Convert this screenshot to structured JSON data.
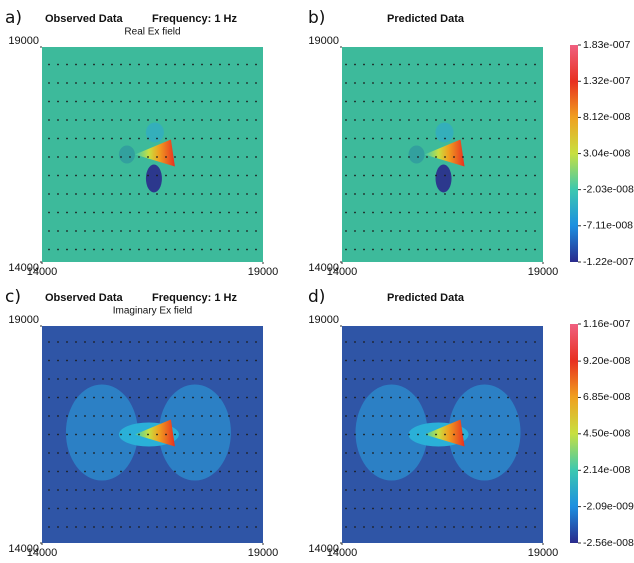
{
  "chart_data": [
    {
      "type": "heatmap",
      "panel_label": "a)",
      "title": "Observed Data",
      "subtitle": "Frequency: 1 Hz",
      "note": "Real Ex field",
      "field_color": "#3dba9b",
      "xlim": [
        14000,
        19000
      ],
      "ylim": [
        14000,
        19000
      ],
      "xticks": [
        14000,
        19000
      ],
      "yticks": [
        14000,
        19000
      ]
    },
    {
      "type": "heatmap",
      "panel_label": "b)",
      "title": "Predicted Data",
      "field_color": "#3dba9b",
      "xlim": [
        14000,
        19000
      ],
      "ylim": [
        14000,
        19000
      ],
      "xticks": [
        14000,
        19000
      ],
      "yticks": [
        14000,
        19000
      ],
      "colormap": [
        "#2a2a8c",
        "#1c8fe0",
        "#3cc8b0",
        "#c8e040",
        "#f0a020",
        "#e83020",
        "#f06080"
      ],
      "zlim": [
        -1.22e-07,
        1.83e-07
      ],
      "zticks": [
        {
          "value": 1.83e-07,
          "label": "1.83e-007"
        },
        {
          "value": 1.32e-07,
          "label": "1.32e-007"
        },
        {
          "value": 8.12e-08,
          "label": "8.12e-008"
        },
        {
          "value": 3.04e-08,
          "label": "3.04e-008"
        },
        {
          "value": -2.03e-08,
          "label": "-2.03e-008"
        },
        {
          "value": -7.11e-08,
          "label": "-7.11e-008"
        },
        {
          "value": -1.22e-07,
          "label": "-1.22e-007"
        }
      ]
    },
    {
      "type": "heatmap",
      "panel_label": "c)",
      "title": "Observed Data",
      "subtitle": "Frequency: 1 Hz",
      "note": "Imaginary Ex field",
      "field_color": "#2f55a6",
      "xlim": [
        14000,
        19000
      ],
      "ylim": [
        14000,
        19000
      ],
      "xticks": [
        14000,
        19000
      ],
      "yticks": [
        14000,
        19000
      ]
    },
    {
      "type": "heatmap",
      "panel_label": "d)",
      "title": "Predicted Data",
      "field_color": "#2f55a6",
      "xlim": [
        14000,
        19000
      ],
      "ylim": [
        14000,
        19000
      ],
      "xticks": [
        14000,
        19000
      ],
      "yticks": [
        14000,
        19000
      ],
      "colormap": [
        "#2a2a8c",
        "#1c8fe0",
        "#3cc8b0",
        "#c8e040",
        "#f0a020",
        "#e83020",
        "#f06080"
      ],
      "zlim": [
        -2.56e-08,
        1.16e-07
      ],
      "zticks": [
        {
          "value": 1.16e-07,
          "label": "1.16e-007"
        },
        {
          "value": 9.2e-08,
          "label": "9.20e-008"
        },
        {
          "value": 6.85e-08,
          "label": "6.85e-008"
        },
        {
          "value": 4.5e-08,
          "label": "4.50e-008"
        },
        {
          "value": 2.14e-08,
          "label": "2.14e-008"
        },
        {
          "value": -2.09e-09,
          "label": "-2.09e-009"
        },
        {
          "value": -2.56e-08,
          "label": "-2.56e-008"
        }
      ]
    }
  ]
}
